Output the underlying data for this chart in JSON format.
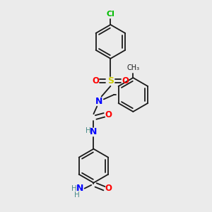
{
  "background_color": "#ebebeb",
  "bond_color": "#1a1a1a",
  "atom_colors": {
    "Cl": "#00bb00",
    "S": "#cccc00",
    "O": "#ff0000",
    "N": "#0000ff",
    "H": "#4a8a8a",
    "C": "#1a1a1a"
  },
  "fig_width": 3.0,
  "fig_height": 3.0,
  "dpi": 100
}
